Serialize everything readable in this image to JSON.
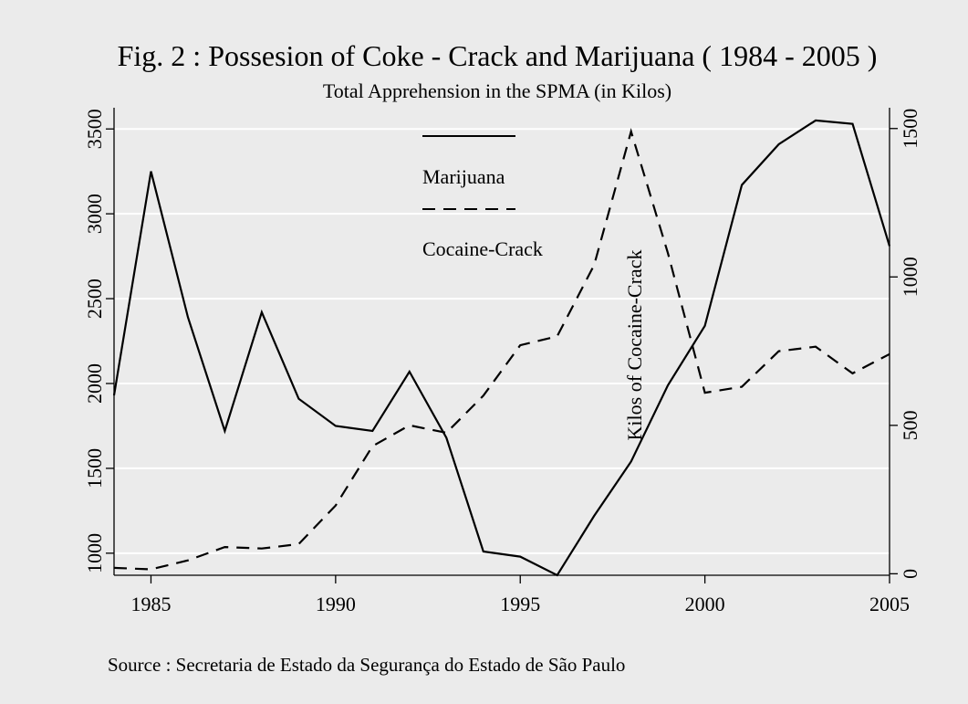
{
  "chart_data": {
    "type": "line",
    "title": "Fig. 2 : Possesion of Coke - Crack and Marijuana ( 1984 - 2005 )",
    "subtitle": "Total Apprehension in the SPMA (in Kilos)",
    "right_axis_label": "Kilos of Cocaine-Crack",
    "source": "Source : Secretaria de Estado da Segurança do Estado de São Paulo",
    "x": [
      1984,
      1985,
      1986,
      1987,
      1988,
      1989,
      1990,
      1991,
      1992,
      1993,
      1994,
      1995,
      1996,
      1997,
      1998,
      1999,
      2000,
      2001,
      2002,
      2003,
      2004,
      2005
    ],
    "xlim": [
      1984,
      2005
    ],
    "x_ticks": [
      "1985",
      "1990",
      "1995",
      "2000",
      "2005"
    ],
    "y_left_ticks": [
      "1000",
      "1500",
      "2000",
      "2500",
      "3000",
      "3500"
    ],
    "y_right_ticks": [
      "0",
      "500",
      "1000",
      "1500"
    ],
    "series": [
      {
        "name": "Marijuana",
        "axis": "left",
        "style": "solid",
        "values": [
          1930,
          3250,
          2390,
          1720,
          2420,
          1910,
          1750,
          1720,
          2070,
          1680,
          1010,
          980,
          870,
          1220,
          1540,
          1990,
          2340,
          3170,
          3410,
          3550,
          3530,
          2810
        ]
      },
      {
        "name": "Cocaine-Crack",
        "axis": "right",
        "style": "dashed",
        "values": [
          20,
          15,
          45,
          90,
          85,
          100,
          230,
          430,
          500,
          475,
          600,
          770,
          800,
          1040,
          1490,
          1080,
          610,
          630,
          750,
          765,
          675,
          740
        ]
      }
    ],
    "ylim_left": [
      870,
      3625
    ],
    "ylim_right": [
      -5,
      1570
    ],
    "grid": true,
    "legend_position": "top-center"
  }
}
